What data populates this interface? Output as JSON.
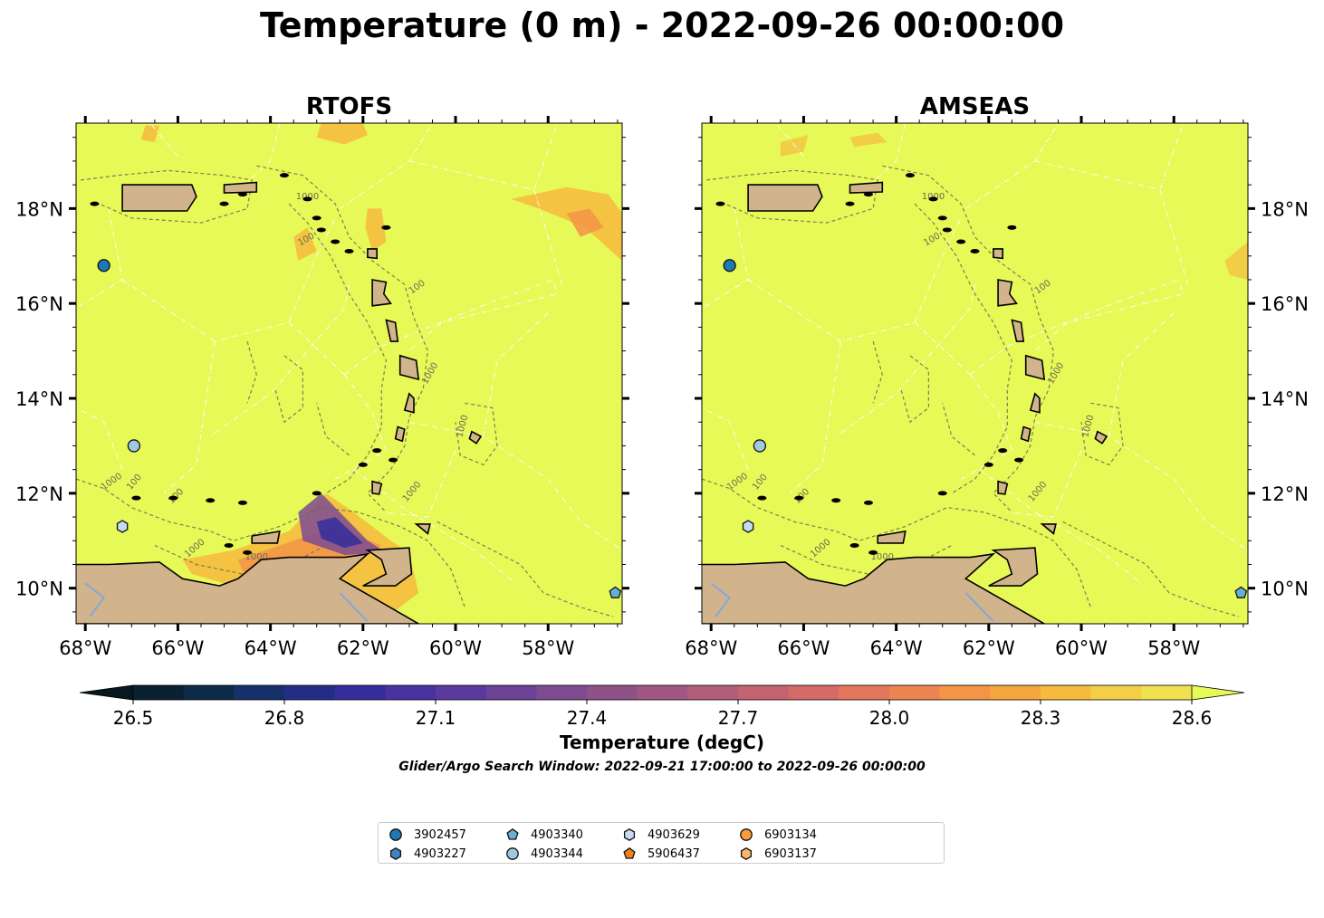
{
  "title": "Temperature (0 m) - 2022-09-26 00:00:00",
  "panels": [
    {
      "title": "RTOFS",
      "variant": "rtofs"
    },
    {
      "title": "AMSEAS",
      "variant": "amseas"
    }
  ],
  "lon_ticks": [
    "68°W",
    "66°W",
    "64°W",
    "62°W",
    "60°W",
    "58°W"
  ],
  "lat_ticks": [
    "18°N",
    "16°N",
    "14°N",
    "12°N",
    "10°N"
  ],
  "contour_labels": [
    "1000",
    "100",
    "100",
    "1000",
    "1000",
    "1000",
    "100",
    "100",
    "1000",
    "1000",
    "1000"
  ],
  "colorbar": {
    "ticks": [
      "26.5",
      "26.8",
      "27.1",
      "27.4",
      "27.7",
      "28.0",
      "28.3",
      "28.6"
    ],
    "label": "Temperature (degC)",
    "subtitle": "Glider/Argo Search Window: 2022-09-21 17:00:00 to 2022-09-26 00:00:00",
    "colors": [
      "#0a2131",
      "#0c2b48",
      "#15306a",
      "#232d88",
      "#352d9c",
      "#48339f",
      "#5a3a9c",
      "#6c4397",
      "#7d4b90",
      "#8e5288",
      "#a05882",
      "#b25e7b",
      "#c46272",
      "#d56a69",
      "#e4775b",
      "#ee844f",
      "#f39446",
      "#f6a63f",
      "#f6ba3e",
      "#f3ce47",
      "#efe150"
    ]
  },
  "colors": {
    "sea": "#e6f957",
    "land": "#d2b48c",
    "rtofs_warm": "#f6ba3e",
    "rtofs_hot": "#f39446",
    "rtofs_cool": "#7d4b90",
    "rtofs_cold": "#352d9c"
  },
  "legend": [
    {
      "id": "3902457",
      "shape": "circle",
      "color": "#1f77b4"
    },
    {
      "id": "4903227",
      "shape": "hexagon",
      "color": "#3f84bc"
    },
    {
      "id": "4903340",
      "shape": "pentagon",
      "color": "#6aaed6"
    },
    {
      "id": "4903344",
      "shape": "circle",
      "color": "#9ecae1"
    },
    {
      "id": "4903629",
      "shape": "hexagon",
      "color": "#c6dbef"
    },
    {
      "id": "5906437",
      "shape": "pentagon",
      "color": "#f2801b"
    },
    {
      "id": "6903134",
      "shape": "circle",
      "color": "#fd9a3a"
    },
    {
      "id": "6903137",
      "shape": "hexagon",
      "color": "#fdb56e"
    }
  ],
  "floats_on_map": [
    {
      "id": "3902457",
      "lon": -67.6,
      "lat": 16.8
    },
    {
      "id": "4903344",
      "lon": -66.95,
      "lat": 13.0
    },
    {
      "id": "4903629",
      "lon": -67.2,
      "lat": 11.3
    },
    {
      "id": "4903340",
      "lon": -56.55,
      "lat": 9.9
    }
  ]
}
